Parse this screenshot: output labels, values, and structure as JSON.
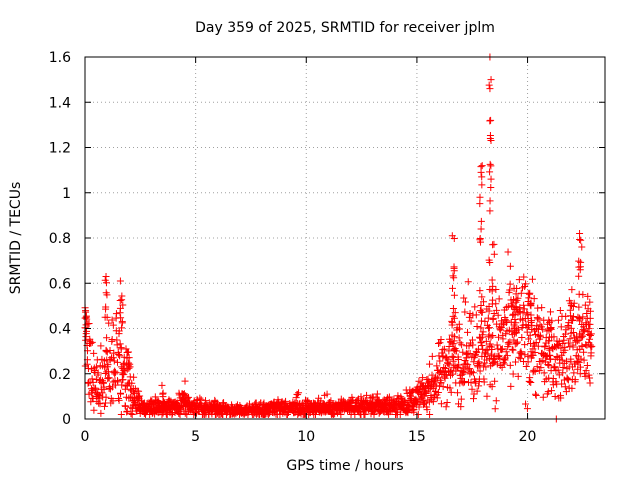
{
  "chart_data": {
    "type": "scatter",
    "title": "Day 359 of 2025, SRMTID for receiver jplm",
    "xlabel": "GPS time / hours",
    "ylabel": "SRMTID / TECUs",
    "xlim": [
      0,
      23.5
    ],
    "ylim": [
      0,
      1.6
    ],
    "grid": true,
    "marker": "+",
    "colors": {
      "series": "#ff0000",
      "grid": "#a0a0a0",
      "axis": "#000000"
    },
    "x_ticks": [
      0,
      5,
      10,
      15,
      20
    ],
    "x_tick_labels": [
      "0",
      "5",
      "10",
      "15",
      "20"
    ],
    "y_ticks": [
      0,
      0.2,
      0.4,
      0.6,
      0.8,
      1.0,
      1.2,
      1.4,
      1.6
    ],
    "y_tick_labels": [
      "0",
      "0.2",
      "0.4",
      "0.6",
      "0.8",
      "1",
      "1.2",
      "1.4",
      "1.6"
    ],
    "trend": [
      [
        0.0,
        0.4
      ],
      [
        0.1,
        0.3
      ],
      [
        0.3,
        0.18
      ],
      [
        0.6,
        0.13
      ],
      [
        0.9,
        0.22
      ],
      [
        1.2,
        0.24
      ],
      [
        1.5,
        0.26
      ],
      [
        1.8,
        0.2
      ],
      [
        2.0,
        0.15
      ],
      [
        2.3,
        0.08
      ],
      [
        2.7,
        0.05
      ],
      [
        3.5,
        0.05
      ],
      [
        4.5,
        0.07
      ],
      [
        5.0,
        0.05
      ],
      [
        6.0,
        0.04
      ],
      [
        7.0,
        0.04
      ],
      [
        8.0,
        0.04
      ],
      [
        9.0,
        0.05
      ],
      [
        10.0,
        0.05
      ],
      [
        11.0,
        0.05
      ],
      [
        12.0,
        0.05
      ],
      [
        13.0,
        0.06
      ],
      [
        14.0,
        0.06
      ],
      [
        14.8,
        0.08
      ],
      [
        15.3,
        0.11
      ],
      [
        15.8,
        0.16
      ],
      [
        16.2,
        0.22
      ],
      [
        16.6,
        0.28
      ],
      [
        17.0,
        0.3
      ],
      [
        17.5,
        0.3
      ],
      [
        18.0,
        0.32
      ],
      [
        18.5,
        0.33
      ],
      [
        19.0,
        0.35
      ],
      [
        19.5,
        0.38
      ],
      [
        20.0,
        0.38
      ],
      [
        20.5,
        0.32
      ],
      [
        21.0,
        0.26
      ],
      [
        21.5,
        0.28
      ],
      [
        22.0,
        0.32
      ],
      [
        22.5,
        0.33
      ],
      [
        22.9,
        0.33
      ]
    ],
    "bursts": [
      {
        "x": 0.05,
        "width": 0.1,
        "peak": 0.5,
        "count": 8
      },
      {
        "x": 0.95,
        "width": 0.12,
        "peak": 0.63,
        "count": 10
      },
      {
        "x": 1.65,
        "width": 0.12,
        "peak": 0.61,
        "count": 10
      },
      {
        "x": 1.95,
        "width": 0.15,
        "peak": 0.3,
        "count": 8
      },
      {
        "x": 3.5,
        "width": 0.1,
        "peak": 0.16,
        "count": 5
      },
      {
        "x": 4.5,
        "width": 0.15,
        "peak": 0.18,
        "count": 6
      },
      {
        "x": 5.9,
        "width": 0.12,
        "peak": 0.12,
        "count": 5
      },
      {
        "x": 9.6,
        "width": 0.15,
        "peak": 0.13,
        "count": 4
      },
      {
        "x": 10.9,
        "width": 0.15,
        "peak": 0.12,
        "count": 4
      },
      {
        "x": 16.65,
        "width": 0.12,
        "peak": 0.8,
        "count": 14
      },
      {
        "x": 17.9,
        "width": 0.12,
        "peak": 1.15,
        "count": 14
      },
      {
        "x": 18.3,
        "width": 0.1,
        "peak": 1.6,
        "count": 14
      },
      {
        "x": 18.45,
        "width": 0.1,
        "peak": 0.78,
        "count": 8
      },
      {
        "x": 19.4,
        "width": 0.2,
        "peak": 0.52,
        "count": 12
      },
      {
        "x": 20.1,
        "width": 0.2,
        "peak": 0.58,
        "count": 12
      },
      {
        "x": 21.0,
        "width": 0.15,
        "peak": 0.45,
        "count": 8
      },
      {
        "x": 22.0,
        "width": 0.15,
        "peak": 0.6,
        "count": 8
      },
      {
        "x": 22.35,
        "width": 0.1,
        "peak": 0.82,
        "count": 10
      },
      {
        "x": 22.8,
        "width": 0.1,
        "peak": 0.55,
        "count": 6
      }
    ],
    "outliers": [
      [
        18.3,
        1.6
      ],
      [
        18.35,
        1.5
      ],
      [
        18.3,
        1.46
      ],
      [
        18.33,
        1.32
      ],
      [
        18.32,
        1.24
      ],
      [
        17.95,
        1.12
      ],
      [
        17.9,
        1.09
      ],
      [
        17.85,
        0.98
      ],
      [
        18.35,
        1.06
      ],
      [
        18.3,
        0.92
      ],
      [
        17.9,
        0.84
      ],
      [
        18.42,
        0.77
      ],
      [
        22.35,
        0.82
      ],
      [
        22.4,
        0.79
      ],
      [
        22.45,
        0.76
      ],
      [
        21.3,
        0.0
      ],
      [
        22.5,
        0.55
      ],
      [
        1.6,
        0.61
      ],
      [
        0.95,
        0.63
      ],
      [
        16.6,
        0.81
      ]
    ],
    "point_count": 1900,
    "x_range_data": [
      0.0,
      22.9
    ]
  }
}
